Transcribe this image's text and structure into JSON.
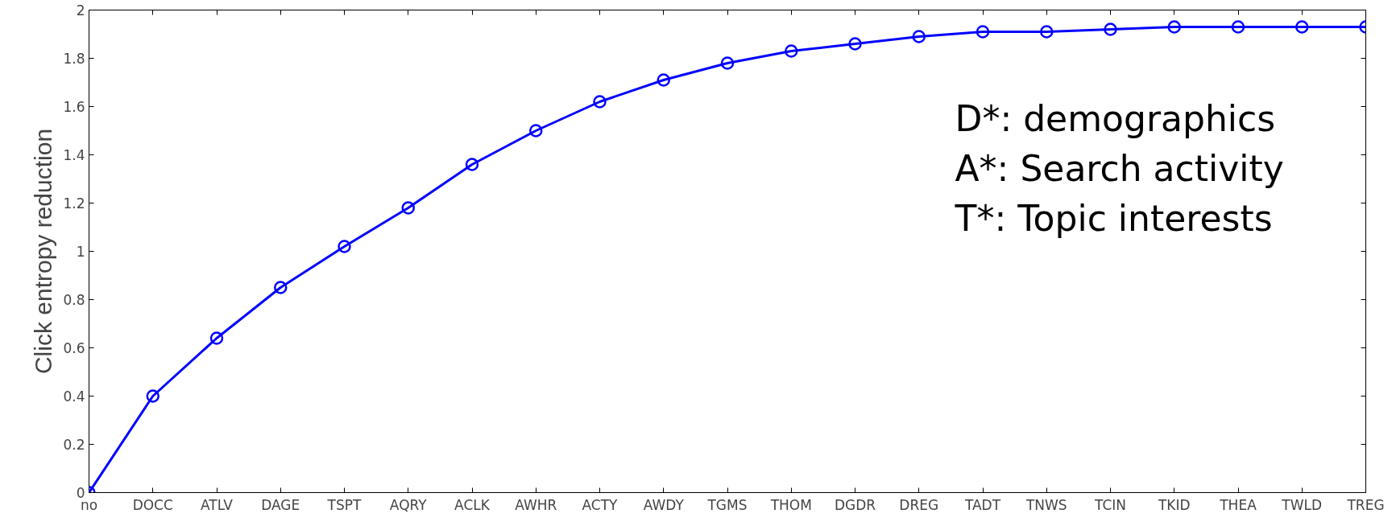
{
  "chart_data": {
    "type": "line",
    "ylabel": "Click entropy reduction",
    "categories": [
      "no",
      "DOCC",
      "ATLV",
      "DAGE",
      "TSPT",
      "AQRY",
      "ACLK",
      "AWHR",
      "ACTY",
      "AWDY",
      "TGMS",
      "THOM",
      "DGDR",
      "DREG",
      "TADT",
      "TNWS",
      "TCIN",
      "TKID",
      "THEA",
      "TWLD",
      "TREG"
    ],
    "series": [
      {
        "color": "#0000ff",
        "values": [
          0,
          0.4,
          0.64,
          0.85,
          1.02,
          1.18,
          1.36,
          1.5,
          1.62,
          1.71,
          1.78,
          1.83,
          1.86,
          1.89,
          1.91,
          1.91,
          1.92,
          1.93,
          1.93,
          1.93,
          1.93
        ]
      }
    ],
    "ylim": [
      0,
      2
    ],
    "yticks": [
      0,
      0.2,
      0.4,
      0.6,
      0.8,
      1,
      1.2,
      1.4,
      1.6,
      1.8,
      2
    ],
    "marker": "circle",
    "line_style": "solid",
    "annotations": [
      "D*: demographics",
      "A*: Search activity",
      "T*: Topic interests"
    ]
  }
}
